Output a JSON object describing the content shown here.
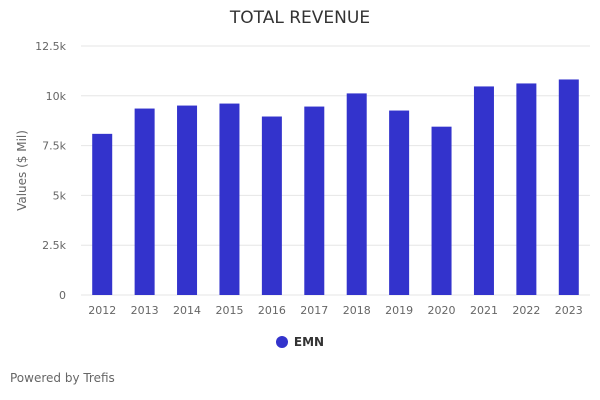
{
  "chart_data": {
    "type": "bar",
    "title": "TOTAL REVENUE",
    "xlabel": "",
    "ylabel": "Values ($ Mil)",
    "categories": [
      "2012",
      "2013",
      "2014",
      "2015",
      "2016",
      "2017",
      "2018",
      "2019",
      "2020",
      "2021",
      "2022",
      "2023"
    ],
    "series": [
      {
        "name": "EMN",
        "values": [
          8090,
          9360,
          9510,
          9610,
          8960,
          9460,
          10120,
          9260,
          8450,
          10470,
          10620,
          10820
        ]
      }
    ],
    "ylim": [
      0,
      12500
    ],
    "yticks": [
      0,
      2500,
      5000,
      7500,
      10000,
      12500
    ],
    "ytick_labels": [
      "0",
      "2.5k",
      "5k",
      "7.5k",
      "10k",
      "12.5k"
    ],
    "grid": true,
    "legend": "bottom-center",
    "colors": {
      "bar": "#3333cc",
      "grid": "#e6e6e6"
    }
  },
  "footer": {
    "credit": "Powered by Trefis"
  }
}
